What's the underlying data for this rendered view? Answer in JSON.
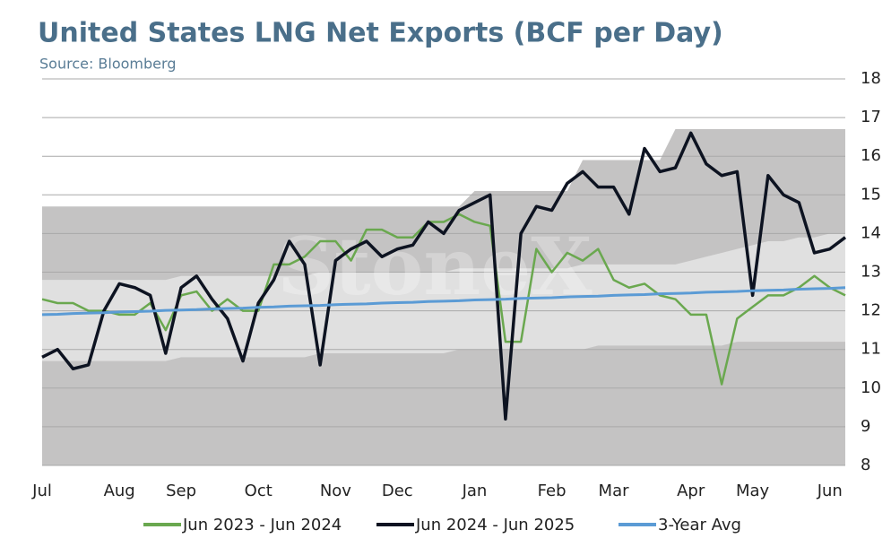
{
  "chart_data": {
    "type": "line",
    "title": "United States LNG Net Exports (BCF per Day)",
    "subtitle": "Source: Bloomberg",
    "watermark": "StoneX",
    "categories": [
      "Jul",
      null,
      null,
      null,
      null,
      "Aug",
      null,
      null,
      null,
      "Sep",
      null,
      null,
      null,
      null,
      "Oct",
      null,
      null,
      null,
      null,
      "Nov",
      null,
      null,
      null,
      "Dec",
      null,
      null,
      null,
      null,
      "Jan",
      null,
      null,
      null,
      null,
      "Feb",
      null,
      null,
      null,
      "Mar",
      null,
      null,
      null,
      null,
      "Apr",
      null,
      null,
      null,
      "May",
      null,
      null,
      null,
      null,
      "Jun",
      null
    ],
    "ylim": [
      8,
      18
    ],
    "yticks": [
      8,
      9,
      10,
      11,
      12,
      13,
      14,
      15,
      16,
      17,
      18
    ],
    "grid": true,
    "bands": [
      {
        "color": "#c4c3c3",
        "upper": [
          14.7,
          14.7,
          14.7,
          14.7,
          14.7,
          14.7,
          14.7,
          14.7,
          14.7,
          14.7,
          14.7,
          14.7,
          14.7,
          14.7,
          14.7,
          14.7,
          14.7,
          14.7,
          14.7,
          14.7,
          14.7,
          14.7,
          14.7,
          14.7,
          14.7,
          14.7,
          14.7,
          14.7,
          15.1,
          15.1,
          15.1,
          15.1,
          15.1,
          15.1,
          15.1,
          15.9,
          15.9,
          15.9,
          15.9,
          15.9,
          15.9,
          16.7,
          16.7,
          16.7,
          16.7,
          16.7,
          16.7,
          16.7,
          16.7,
          16.7,
          16.7,
          16.7,
          16.7
        ],
        "lower": [
          8,
          8,
          8,
          8,
          8,
          8,
          8,
          8,
          8,
          8,
          8,
          8,
          8,
          8,
          8,
          8,
          8,
          8,
          8,
          8,
          8,
          8,
          8,
          8,
          8,
          8,
          8,
          8,
          8,
          8,
          8,
          8,
          8,
          8,
          8,
          8,
          8,
          8,
          8,
          8,
          8,
          8,
          8,
          8,
          8,
          8,
          8,
          8,
          8,
          8,
          8,
          8,
          8
        ]
      },
      {
        "color": "#e0e0e0",
        "upper": [
          12.8,
          12.8,
          12.8,
          12.8,
          12.8,
          12.8,
          12.8,
          12.8,
          12.8,
          12.9,
          12.9,
          12.9,
          12.9,
          12.9,
          12.9,
          12.9,
          12.9,
          12.9,
          13.0,
          13.0,
          13.0,
          13.0,
          13.0,
          13.0,
          13.0,
          13.0,
          13.0,
          13.1,
          13.1,
          13.1,
          13.1,
          13.1,
          13.1,
          13.1,
          13.1,
          13.2,
          13.2,
          13.2,
          13.2,
          13.2,
          13.2,
          13.2,
          13.3,
          13.4,
          13.5,
          13.6,
          13.7,
          13.8,
          13.8,
          13.9,
          13.9,
          14.0,
          14.0
        ],
        "lower": [
          10.7,
          10.7,
          10.7,
          10.7,
          10.7,
          10.7,
          10.7,
          10.7,
          10.7,
          10.8,
          10.8,
          10.8,
          10.8,
          10.8,
          10.8,
          10.8,
          10.8,
          10.8,
          10.9,
          10.9,
          10.9,
          10.9,
          10.9,
          10.9,
          10.9,
          10.9,
          10.9,
          11.0,
          11.0,
          11.0,
          11.0,
          11.0,
          11.0,
          11.0,
          11.0,
          11.0,
          11.1,
          11.1,
          11.1,
          11.1,
          11.1,
          11.1,
          11.1,
          11.1,
          11.1,
          11.2,
          11.2,
          11.2,
          11.2,
          11.2,
          11.2,
          11.2,
          11.2
        ]
      }
    ],
    "series": [
      {
        "name": "Jun 2023 - Jun 2024",
        "color": "#6aa84f",
        "width": 2.5,
        "values": [
          12.3,
          12.2,
          12.2,
          12.0,
          12.0,
          11.9,
          11.9,
          12.2,
          11.5,
          12.4,
          12.5,
          12.0,
          12.3,
          12.0,
          12.0,
          13.2,
          13.2,
          13.4,
          13.8,
          13.8,
          13.3,
          14.1,
          14.1,
          13.9,
          13.9,
          14.3,
          14.3,
          14.5,
          14.3,
          14.2,
          11.2,
          11.2,
          13.6,
          13.0,
          13.5,
          13.3,
          13.6,
          12.8,
          12.6,
          12.7,
          12.4,
          12.3,
          11.9,
          11.9,
          10.1,
          11.8,
          12.1,
          12.4,
          12.4,
          12.6,
          12.9,
          12.6,
          12.4
        ]
      },
      {
        "name": "Jun 2024 - Jun 2025",
        "color": "#0d1321",
        "width": 3.5,
        "values": [
          10.8,
          11.0,
          10.5,
          10.6,
          12.0,
          12.7,
          12.6,
          12.4,
          10.9,
          12.6,
          12.9,
          12.3,
          11.8,
          10.7,
          12.2,
          12.8,
          13.8,
          13.2,
          10.6,
          13.3,
          13.6,
          13.8,
          13.4,
          13.6,
          13.7,
          14.3,
          14.0,
          14.6,
          14.8,
          15.0,
          9.2,
          14.0,
          14.7,
          14.6,
          15.3,
          15.6,
          15.2,
          15.2,
          14.5,
          16.2,
          15.6,
          15.7,
          16.6,
          15.8,
          15.5,
          15.6,
          12.4,
          15.5,
          15.0,
          14.8,
          13.5,
          13.6,
          13.9
        ]
      },
      {
        "name": "3-Year Avg",
        "color": "#5b9bd5",
        "width": 3,
        "values": [
          11.9,
          11.91,
          11.93,
          11.94,
          11.95,
          11.97,
          11.98,
          11.99,
          12.01,
          12.02,
          12.03,
          12.05,
          12.06,
          12.07,
          12.09,
          12.1,
          12.12,
          12.13,
          12.14,
          12.16,
          12.17,
          12.18,
          12.2,
          12.21,
          12.22,
          12.24,
          12.25,
          12.26,
          12.28,
          12.29,
          12.3,
          12.32,
          12.33,
          12.34,
          12.36,
          12.37,
          12.38,
          12.4,
          12.41,
          12.42,
          12.44,
          12.45,
          12.46,
          12.48,
          12.49,
          12.5,
          12.52,
          12.53,
          12.54,
          12.56,
          12.57,
          12.58,
          12.6
        ]
      }
    ]
  }
}
